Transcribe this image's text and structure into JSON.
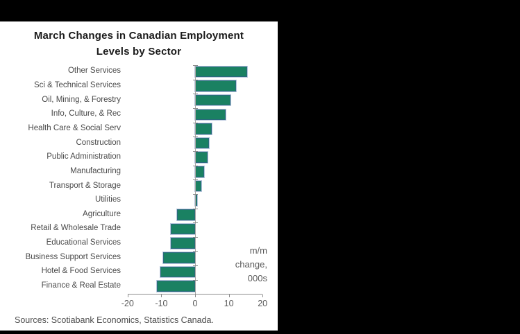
{
  "title": {
    "line1": "March Changes in Canadian Employment",
    "line2": "Levels by Sector"
  },
  "annotation": {
    "line1": "m/m",
    "line2": "change,",
    "line3": "000s"
  },
  "source": "Sources: Scotiabank Economics, Statistics Canada.",
  "colors": {
    "bar_fill": "#1a8162",
    "bar_border": "#2a6a7d",
    "bar_halo": "#b9c7de",
    "axis": "#8c8c8c",
    "panel_bg": "#ffffff",
    "window_bg": "#000000"
  },
  "chart_data": {
    "type": "bar",
    "orientation": "horizontal",
    "title": "March Changes in Canadian Employment Levels by Sector",
    "xlabel": "m/m change, 000s",
    "ylabel": "",
    "xlim": [
      -20,
      20
    ],
    "x_ticks": [
      -20,
      -10,
      0,
      10,
      20
    ],
    "x_tick_labels": [
      "-20",
      "-10",
      "0",
      "10",
      "20"
    ],
    "grid": false,
    "legend": "none",
    "categories": [
      "Other Services",
      "Sci & Technical Services",
      "Oil, Mining, & Forestry",
      "Info, Culture, & Rec",
      "Health Care & Social Serv",
      "Construction",
      "Public Administration",
      "Manufacturing",
      "Transport & Storage",
      "Utilities",
      "Agriculture",
      "Retail & Wholesale Trade",
      "Educational Services",
      "Business Support Services",
      "Hotel & Food Services",
      "Finance & Real Estate"
    ],
    "values": [
      15.4,
      12.2,
      10.4,
      9.0,
      4.9,
      4.1,
      3.7,
      2.6,
      1.8,
      0.6,
      -5.3,
      -7.1,
      -7.3,
      -9.4,
      -10.3,
      -11.4
    ]
  }
}
